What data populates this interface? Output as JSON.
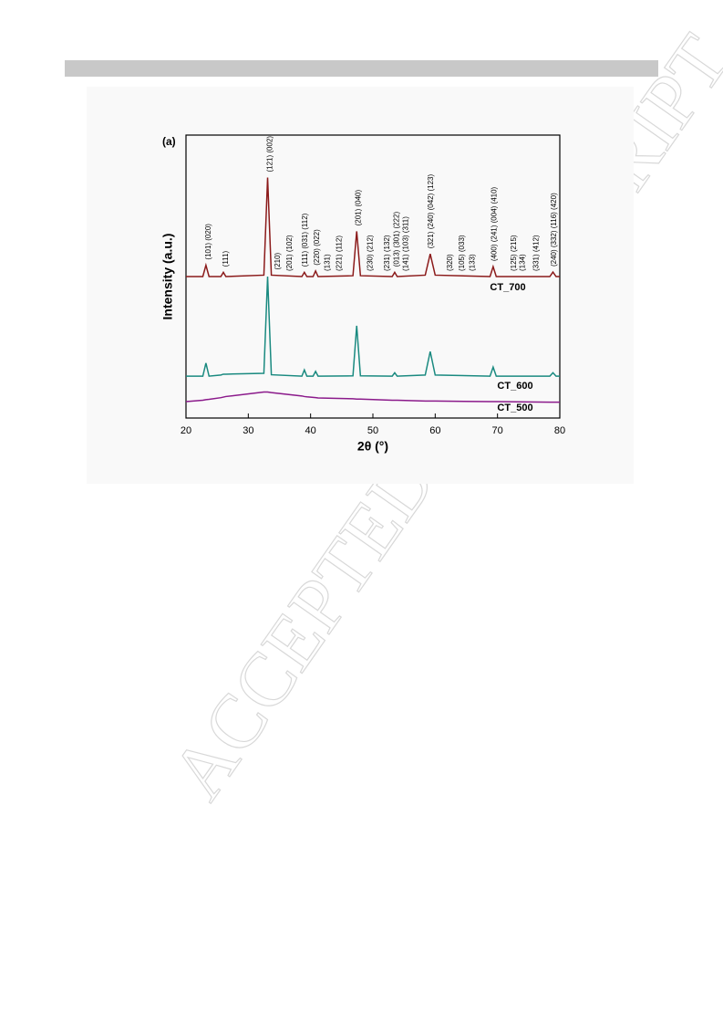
{
  "watermark": "ACCEPTED MANUSCRIPT",
  "chart_data": {
    "type": "line",
    "panel_label": "(a)",
    "x_label": "2θ (°)",
    "y_label": "Intensity (a.u.)",
    "xlim": [
      20,
      80
    ],
    "xticks": [
      20,
      30,
      40,
      50,
      60,
      70,
      80
    ],
    "ylim": [
      0,
      100
    ],
    "x": [
      20,
      22.7,
      23.2,
      23.7,
      25.6,
      26,
      26.4,
      32.5,
      33.1,
      33.7,
      38.6,
      39,
      39.4,
      40.4,
      40.8,
      41.2,
      46.8,
      47.4,
      48,
      53.1,
      53.5,
      53.9,
      58.4,
      59.2,
      60,
      68.8,
      69.3,
      69.8,
      78.4,
      78.9,
      79.4,
      80
    ],
    "series": [
      {
        "name": "CT_700",
        "color": "#8b1a1a",
        "values": [
          50,
          50,
          54,
          50,
          50,
          51.5,
          50,
          50.5,
          85,
          50.5,
          50,
          51.5,
          50,
          50,
          52,
          50,
          50.3,
          66,
          50.3,
          50,
          51.5,
          50,
          50.5,
          58,
          50.5,
          50,
          53.5,
          50,
          50,
          51.6,
          50,
          50
        ]
      },
      {
        "name": "CT_600",
        "color": "#1a8a80",
        "values": [
          14.8,
          14.8,
          19.4,
          14.8,
          15.2,
          15.5,
          15.5,
          15.8,
          50,
          15.3,
          14.8,
          17,
          14.8,
          14.8,
          16.5,
          14.8,
          14.9,
          32.6,
          14.9,
          14.8,
          16,
          14.8,
          15.2,
          23.5,
          15.2,
          14.8,
          18,
          14.8,
          14.8,
          16,
          14.8,
          14.8
        ]
      },
      {
        "name": "CT_500",
        "color": "#8b1a8b",
        "values": [
          5.8,
          6.3,
          6.5,
          6.6,
          7.2,
          7.4,
          7.6,
          9.2,
          9.2,
          9,
          7.8,
          7.6,
          7.5,
          7.3,
          7.2,
          7.1,
          6.8,
          6.7,
          6.7,
          6.3,
          6.3,
          6.3,
          6,
          6,
          6,
          5.8,
          5.8,
          5.8,
          5.6,
          5.6,
          5.6,
          5.6
        ]
      }
    ],
    "annotations": [
      {
        "text": "(101) (020)",
        "x": 23.2
      },
      {
        "text": "(111)",
        "x": 26
      },
      {
        "text": "(121) (002)",
        "x": 33.1
      },
      {
        "text": "(210)",
        "x": 34.3
      },
      {
        "text": "(201) (102)",
        "x": 36.2
      },
      {
        "text": "(111) (031) (112)",
        "x": 38.7
      },
      {
        "text": "(220) (022)",
        "x": 40.6
      },
      {
        "text": "(131)",
        "x": 42.3
      },
      {
        "text": "(221) (112)",
        "x": 44.2
      },
      {
        "text": "(201) (040)",
        "x": 47.3
      },
      {
        "text": "(230) (212)",
        "x": 49.2
      },
      {
        "text": "(231) (132)",
        "x": 51.9
      },
      {
        "text": "(013) (301) (222)",
        "x": 53.4
      },
      {
        "text": "(141) (103) (311)",
        "x": 54.9
      },
      {
        "text": "(321) (240) (042) (123)",
        "x": 58.9
      },
      {
        "text": "(320)",
        "x": 62
      },
      {
        "text": "(105) (033)",
        "x": 63.9
      },
      {
        "text": "(133)",
        "x": 65.6
      },
      {
        "text": "(400) (241) (004) (410)",
        "x": 69.1
      },
      {
        "text": "(125) (215)",
        "x": 72.2
      },
      {
        "text": "(134)",
        "x": 73.6
      },
      {
        "text": "(331) (412)",
        "x": 75.8
      },
      {
        "text": "(240) (332) (116) (420)",
        "x": 78.7
      }
    ]
  }
}
